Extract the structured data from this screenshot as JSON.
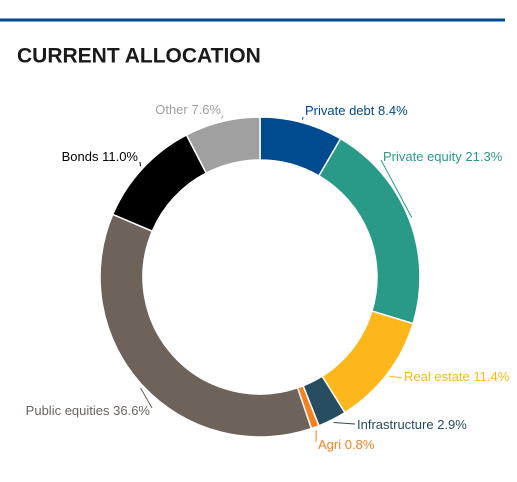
{
  "chart_data": {
    "type": "donut",
    "title": "CURRENT ALLOCATION",
    "categories": [
      "Private debt",
      "Private equity",
      "Real estate",
      "Infrastructure",
      "Agri",
      "Public equities",
      "Bonds",
      "Other"
    ],
    "values": [
      8.4,
      21.3,
      11.4,
      2.9,
      0.8,
      36.6,
      11.0,
      7.6
    ],
    "value_labels": [
      "8.4%",
      "21.3%",
      "11.4%",
      "2.9%",
      "0.8%",
      "36.6%",
      "11.0%",
      "7.6%"
    ],
    "colors": [
      "#004a8f",
      "#2a9a88",
      "#fdb71b",
      "#264d60",
      "#f58220",
      "#6e635b",
      "#000000",
      "#a0a0a0"
    ]
  }
}
